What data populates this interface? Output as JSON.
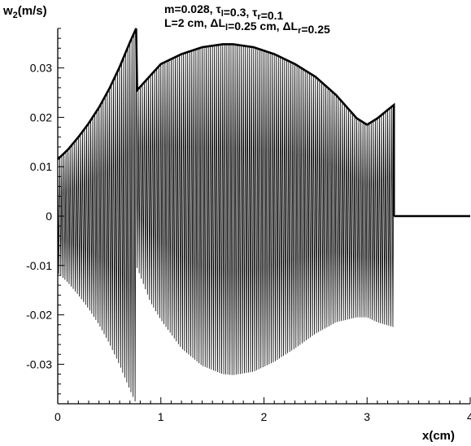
{
  "chart_data": {
    "type": "line",
    "title_line1": "m=0.028, τl=0.3, τr=0.1",
    "title_line2": "L=2 cm, ΔLl=0.25 cm, ΔLr=0.25",
    "xlabel": "x(cm)",
    "ylabel": "w2(m/s)",
    "xlim": [
      0,
      4
    ],
    "ylim": [
      -0.038,
      0.038
    ],
    "x_ticks": [
      "0",
      "1",
      "2",
      "3",
      "4"
    ],
    "y_ticks": [
      "0.03",
      "0.02",
      "0.01",
      "0",
      "-0.01",
      "-0.02",
      "-0.03"
    ],
    "grid": false,
    "legend": "none",
    "oscillation_period_cm": 0.02,
    "series": [
      {
        "role": "upper-envelope",
        "points": [
          [
            0,
            0.0115
          ],
          [
            0.1,
            0.0135
          ],
          [
            0.2,
            0.016
          ],
          [
            0.3,
            0.0188
          ],
          [
            0.4,
            0.022
          ],
          [
            0.5,
            0.0258
          ],
          [
            0.6,
            0.0302
          ],
          [
            0.7,
            0.0352
          ],
          [
            0.76,
            0.038
          ],
          [
            0.77,
            0.0255
          ],
          [
            0.9,
            0.0285
          ],
          [
            1.0,
            0.0308
          ],
          [
            1.2,
            0.0328
          ],
          [
            1.4,
            0.0342
          ],
          [
            1.6,
            0.0348
          ],
          [
            1.7,
            0.0348
          ],
          [
            1.9,
            0.0342
          ],
          [
            2.1,
            0.0328
          ],
          [
            2.3,
            0.0308
          ],
          [
            2.5,
            0.0282
          ],
          [
            2.7,
            0.0245
          ],
          [
            2.9,
            0.0198
          ],
          [
            3.0,
            0.0185
          ],
          [
            3.1,
            0.0198
          ],
          [
            3.2,
            0.0215
          ],
          [
            3.26,
            0.0225
          ],
          [
            3.26,
            0
          ]
        ]
      },
      {
        "role": "lower-envelope",
        "points": [
          [
            0,
            -0.0115
          ],
          [
            0.1,
            -0.0135
          ],
          [
            0.2,
            -0.016
          ],
          [
            0.3,
            -0.0188
          ],
          [
            0.4,
            -0.022
          ],
          [
            0.5,
            -0.0258
          ],
          [
            0.6,
            -0.0302
          ],
          [
            0.7,
            -0.0352
          ],
          [
            0.76,
            -0.038
          ],
          [
            0.77,
            -0.0105
          ],
          [
            0.9,
            -0.0175
          ],
          [
            1.0,
            -0.021
          ],
          [
            1.2,
            -0.0268
          ],
          [
            1.4,
            -0.0303
          ],
          [
            1.6,
            -0.032
          ],
          [
            1.7,
            -0.0322
          ],
          [
            1.9,
            -0.0315
          ],
          [
            2.1,
            -0.0295
          ],
          [
            2.3,
            -0.0268
          ],
          [
            2.5,
            -0.0238
          ],
          [
            2.7,
            -0.0215
          ],
          [
            2.9,
            -0.0205
          ],
          [
            3.0,
            -0.0205
          ],
          [
            3.1,
            -0.0215
          ],
          [
            3.26,
            -0.0225
          ]
        ]
      },
      {
        "role": "zero-line-after-front",
        "points": [
          [
            3.26,
            0
          ],
          [
            4.0,
            0
          ]
        ]
      }
    ]
  }
}
